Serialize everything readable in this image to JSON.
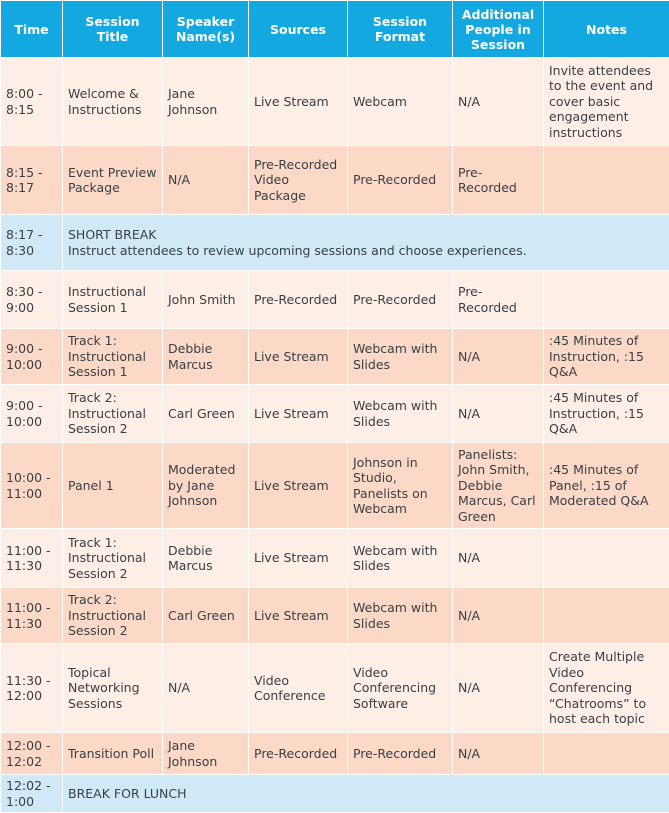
{
  "headers": [
    "Time",
    "Session Title",
    "Speaker Name(s)",
    "Sources",
    "Session Format",
    "Additional People in Session",
    "Notes"
  ],
  "rows": [
    {
      "type": "light",
      "cells": [
        "8:00 - 8:15",
        "Welcome & Instructions",
        "Jane Johnson",
        "Live Stream",
        "Webcam",
        "N/A",
        "Invite attendees to the event and cover basic engagement instructions"
      ]
    },
    {
      "type": "dark",
      "cells": [
        "8:15 - 8:17",
        "Event Preview Package",
        "N/A",
        "Pre-Recorded Video Package",
        "Pre-Recorded",
        "Pre-Recorded",
        ""
      ]
    },
    {
      "type": "break",
      "time": "8:17 - 8:30",
      "title": "SHORT BREAK",
      "text": "Instruct attendees to review upcoming sessions and choose experiences."
    },
    {
      "type": "light",
      "cells": [
        "8:30 - 9:00",
        "Instructional Session 1",
        "John Smith",
        "Pre-Recorded",
        "Pre-Recorded",
        "Pre-Recorded",
        ""
      ]
    },
    {
      "type": "dark",
      "cells": [
        "9:00 - 10:00",
        "Track 1: Instructional Session 1",
        "Debbie Marcus",
        "Live Stream",
        "Webcam with Slides",
        "N/A",
        ":45 Minutes of Instruction, :15 Q&A"
      ]
    },
    {
      "type": "light",
      "cells": [
        "9:00 - 10:00",
        "Track 2: Instructional Session 2",
        "Carl Green",
        "Live Stream",
        "Webcam with Slides",
        "N/A",
        ":45 Minutes of Instruction, :15 Q&A"
      ]
    },
    {
      "type": "dark",
      "cells": [
        "10:00 - 11:00",
        "Panel 1",
        "Moderated by Jane Johnson",
        "Live Stream",
        "Johnson in Studio, Panelists on Webcam",
        "Panelists: John Smith, Debbie Marcus, Carl Green",
        ":45 Minutes of Panel, :15 of Moderated Q&A"
      ]
    },
    {
      "type": "light",
      "cells": [
        "11:00 - 11:30",
        "Track 1: Instructional Session 2",
        "Debbie Marcus",
        "Live Stream",
        "Webcam with Slides",
        "N/A",
        ""
      ]
    },
    {
      "type": "dark",
      "cells": [
        "11:00 - 11:30",
        "Track 2: Instructional Session 2",
        "Carl Green",
        "Live Stream",
        "Webcam with Slides",
        "N/A",
        ""
      ]
    },
    {
      "type": "light",
      "cells": [
        "11:30 - 12:00",
        "Topical Networking Sessions",
        "N/A",
        "Video Conference",
        "Video Conferencing Software",
        "N/A",
        "Create Multiple Video Conferencing “Chatrooms” to host each topic"
      ]
    },
    {
      "type": "dark",
      "cells": [
        "12:00 - 12:02",
        "Transition Poll",
        "Jane Johnson",
        "Pre-Recorded",
        "Pre-Recorded",
        "N/A",
        ""
      ]
    },
    {
      "type": "break",
      "time": "12:02 - 1:00",
      "title": "BREAK FOR LUNCH",
      "text": ""
    }
  ]
}
